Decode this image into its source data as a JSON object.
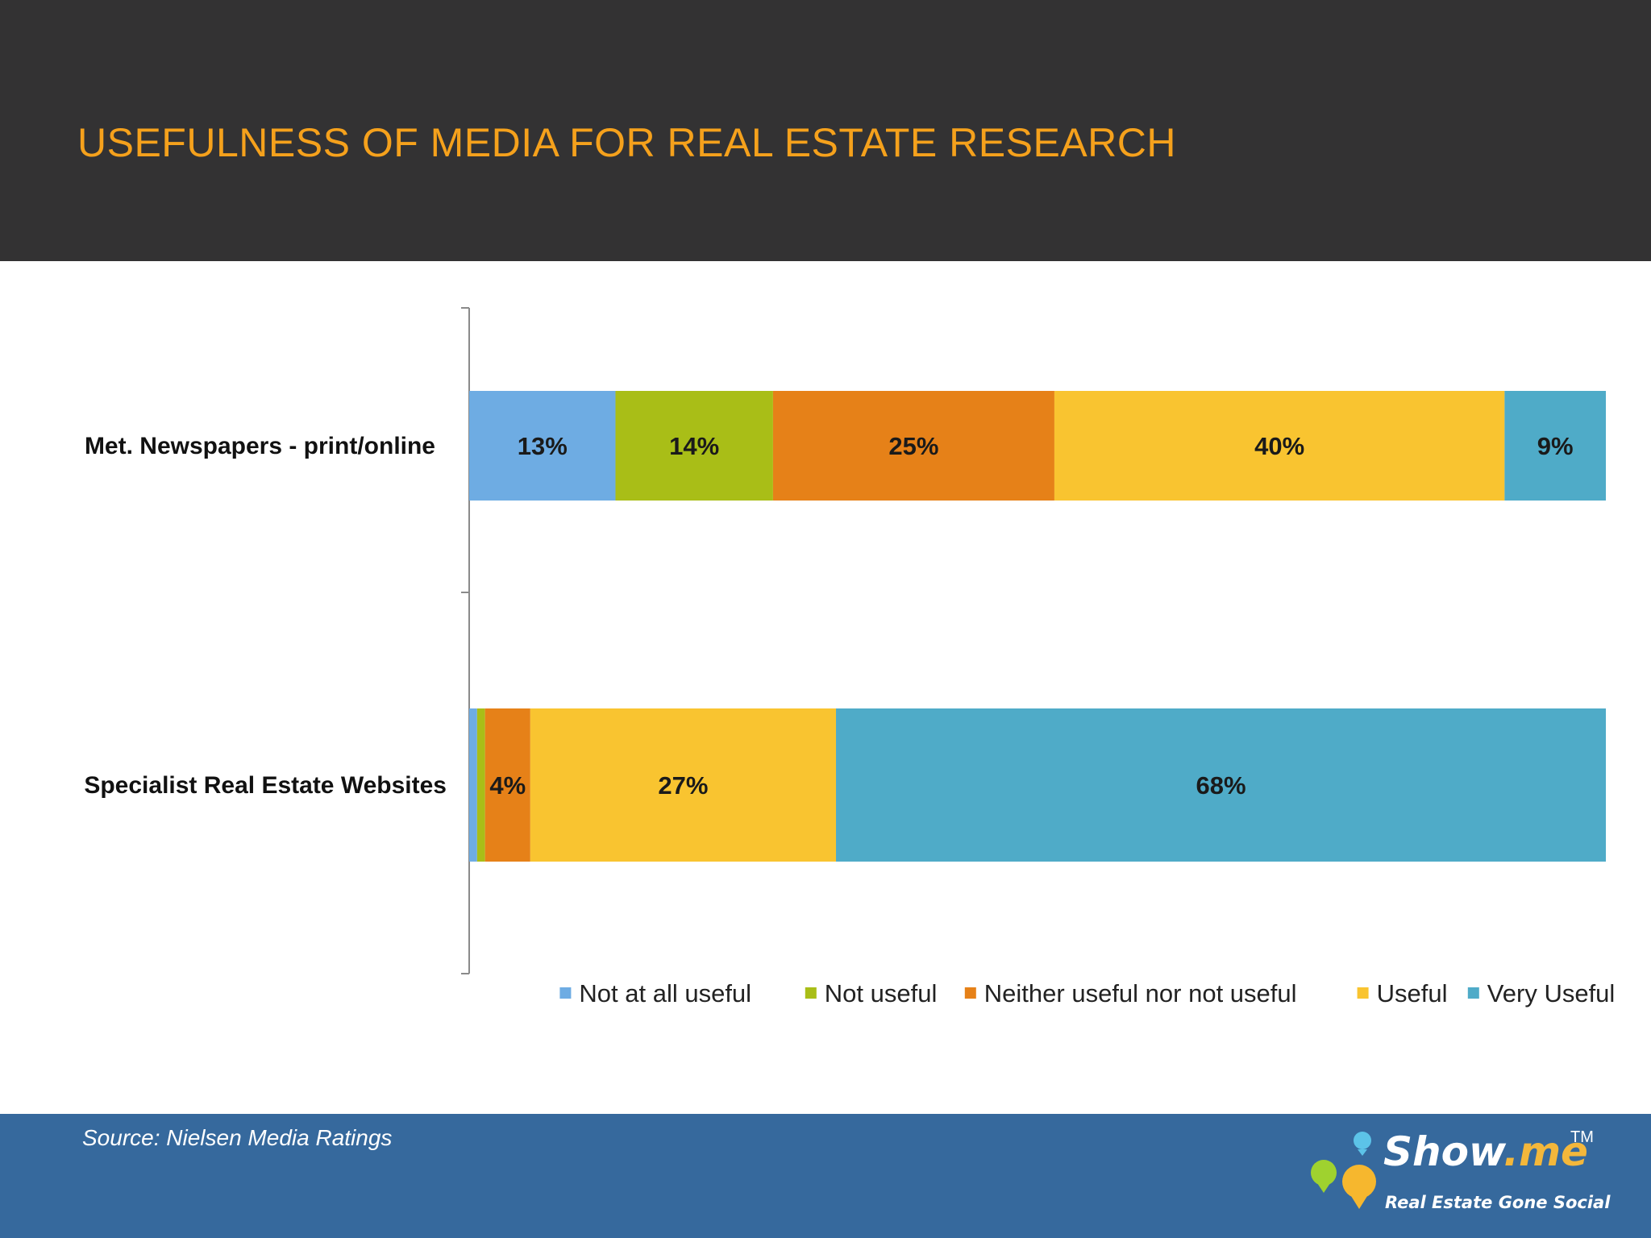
{
  "slide": {
    "title": "USEFULNESS OF MEDIA FOR REAL ESTATE RESEARCH",
    "source": "Source: Nielsen Media Ratings"
  },
  "logo": {
    "word_main": "Show",
    "word_accent": ".me",
    "trademark": "TM",
    "tagline": "Real Estate Gone Social"
  },
  "colors": {
    "header_bg": "#333233",
    "title": "#f5a11c",
    "footer_bg": "#36699d"
  },
  "chart_data": {
    "type": "bar",
    "orientation": "horizontal",
    "stacked": true,
    "percent_stacked": true,
    "title": "",
    "xlabel": "",
    "ylabel": "",
    "xlim": [
      0,
      100
    ],
    "grid": false,
    "legend_position": "bottom",
    "categories": [
      "Met. Newspapers - print/online",
      "Specialist Real Estate Websites"
    ],
    "series": [
      {
        "name": "Not at all useful",
        "color": "#6eace3",
        "values": [
          13,
          0.7
        ],
        "labels": [
          "13%",
          ""
        ]
      },
      {
        "name": "Not useful",
        "color": "#a9be17",
        "values": [
          14,
          0.7
        ],
        "labels": [
          "14%",
          ""
        ]
      },
      {
        "name": "Neither useful nor not useful",
        "color": "#e68118",
        "values": [
          25,
          4
        ],
        "labels": [
          "25%",
          "4%"
        ]
      },
      {
        "name": "Useful",
        "color": "#f9c430",
        "values": [
          40,
          27
        ],
        "labels": [
          "40%",
          "27%"
        ]
      },
      {
        "name": "Very Useful",
        "color": "#4fabc8",
        "values": [
          9,
          68
        ],
        "labels": [
          "9%",
          "68%"
        ]
      }
    ]
  }
}
